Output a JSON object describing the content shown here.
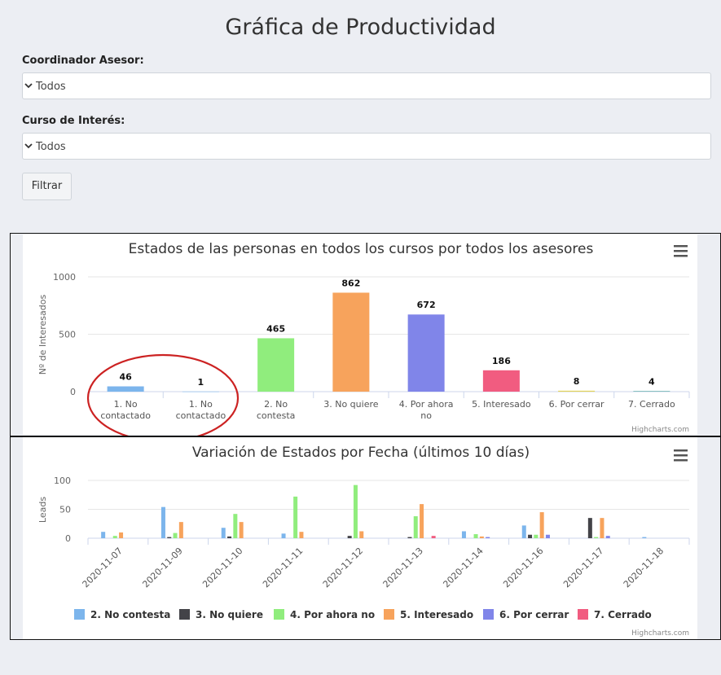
{
  "page": {
    "title": "Gráfica de Productividad"
  },
  "filters": {
    "coordinator_label": "Coordinador Asesor:",
    "coordinator_value": "Todos",
    "course_label": "Curso de Interés:",
    "course_value": "Todos",
    "filter_button": "Filtrar"
  },
  "credits": "Highcharts.com",
  "chart_data": [
    {
      "type": "bar",
      "title": "Estados de las personas en todos los cursos por todos los asesores",
      "ylabel": "Nº de Interesados",
      "ylim": [
        0,
        1000
      ],
      "yticks": [
        0,
        500,
        1000
      ],
      "categories": [
        "1. No contactado",
        "1. No contactado",
        "2. No contesta",
        "3. No quiere",
        "4. Por ahora no",
        "5. Interesado",
        "6. Por cerrar",
        "7. Cerrado"
      ],
      "values": [
        46,
        1,
        465,
        862,
        672,
        186,
        8,
        4
      ],
      "colors": [
        "#7cb5ec",
        "#7cb5ec",
        "#90ed7d",
        "#f7a35c",
        "#8085e9",
        "#f15c80",
        "#e4d354",
        "#2b908f"
      ]
    },
    {
      "type": "bar",
      "title": "Variación de Estados por Fecha (últimos 10 días)",
      "ylabel": "Leads",
      "ylim": [
        0,
        100
      ],
      "yticks": [
        0,
        50,
        100
      ],
      "categories": [
        "2020-11-07",
        "2020-11-09",
        "2020-11-10",
        "2020-11-11",
        "2020-11-12",
        "2020-11-13",
        "2020-11-14",
        "2020-11-16",
        "2020-11-17",
        "2020-11-18"
      ],
      "legend_position": "bottom",
      "series": [
        {
          "name": "2. No contesta",
          "color": "#7cb5ec",
          "values": [
            11,
            54,
            18,
            8,
            0,
            0,
            12,
            22,
            0,
            2
          ]
        },
        {
          "name": "3. No quiere",
          "color": "#434348",
          "values": [
            0,
            2,
            3,
            0,
            4,
            2,
            0,
            6,
            35,
            0
          ]
        },
        {
          "name": "4. Por ahora no",
          "color": "#90ed7d",
          "values": [
            4,
            9,
            42,
            72,
            92,
            38,
            7,
            6,
            2,
            0
          ]
        },
        {
          "name": "5. Interesado",
          "color": "#f7a35c",
          "values": [
            10,
            28,
            28,
            11,
            12,
            59,
            3,
            45,
            35,
            0
          ]
        },
        {
          "name": "6. Por cerrar",
          "color": "#8085e9",
          "values": [
            0,
            0,
            0,
            0,
            0,
            0,
            2,
            6,
            4,
            0
          ]
        },
        {
          "name": "7. Cerrado",
          "color": "#f15c80",
          "values": [
            0,
            0,
            0,
            0,
            0,
            4,
            0,
            0,
            0,
            0
          ]
        }
      ]
    }
  ]
}
